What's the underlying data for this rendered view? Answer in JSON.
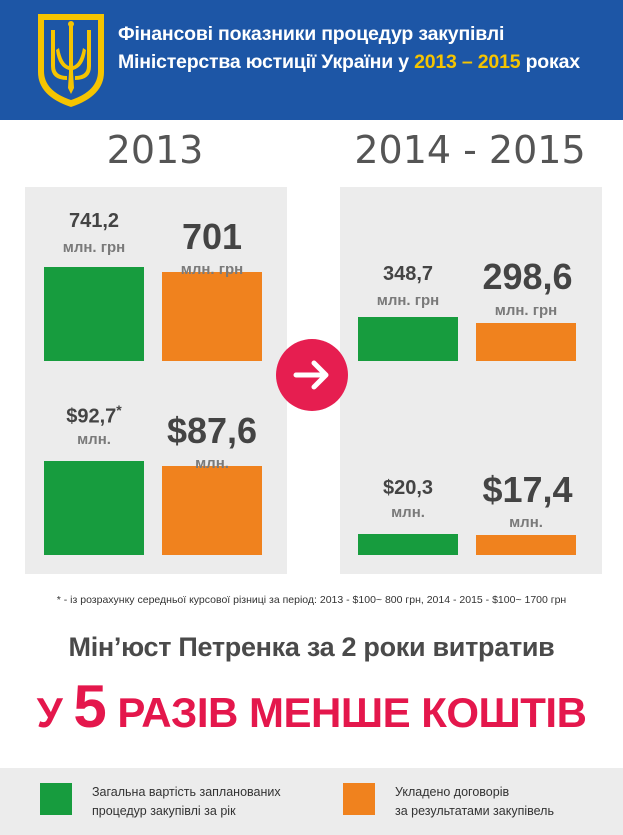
{
  "header": {
    "title_line1": "Фінансові показники процедур закупівлі",
    "title_line2_prefix": "Міністерства юстиції України у ",
    "title_line2_highlight": "2013 – 2015",
    "title_line2_suffix": " роках",
    "emblem_icon": "ukraine-trident-emblem-icon"
  },
  "chart_data": {
    "type": "bar",
    "periods": [
      "2013",
      "2014 - 2015"
    ],
    "series": [
      {
        "name": "Загальна вартість запланованих процедур закупівлі за рік",
        "color": "#179c3e"
      },
      {
        "name": "Укладено договорів за результатами закупівель",
        "color": "#f0821e"
      }
    ],
    "groups": [
      {
        "period": "2013",
        "uah": {
          "planned": {
            "value": 741.2,
            "label": "741,2",
            "unit": "млн. грн"
          },
          "contracted": {
            "value": 701,
            "label": "701",
            "unit": "млн. грн"
          }
        },
        "usd": {
          "planned": {
            "value": 92.7,
            "label": "$92,7",
            "note": "*",
            "unit": "млн."
          },
          "contracted": {
            "value": 87.6,
            "label": "$87,6",
            "unit": "млн."
          }
        }
      },
      {
        "period": "2014 - 2015",
        "uah": {
          "planned": {
            "value": 348.7,
            "label": "348,7",
            "unit": "млн. грн"
          },
          "contracted": {
            "value": 298.6,
            "label": "298,6",
            "unit": "млн. грн"
          }
        },
        "usd": {
          "planned": {
            "value": 20.3,
            "label": "$20,3",
            "unit": "млн."
          },
          "contracted": {
            "value": 17.4,
            "label": "$17,4",
            "unit": "млн."
          }
        }
      }
    ]
  },
  "arrow_icon": "arrow-right-icon",
  "footnote": "* - із розрахунку середньої курсової різниці за період: 2013 - $100~ 800 грн, 2014 - 2015 - $100~ 1700 грн",
  "conclusion": {
    "line1": "Мін’юст Петренка за 2 роки витратив",
    "prefix": "У ",
    "number": "5",
    "suffix": " РАЗІВ МЕНШЕ КОШТІВ"
  },
  "legend": {
    "planned_line1": "Загальна вартість запланованих",
    "planned_line2": "процедур закупівлі за рік",
    "contracted_line1": "Укладено договорів",
    "contracted_line2": "за результатами закупівель"
  }
}
